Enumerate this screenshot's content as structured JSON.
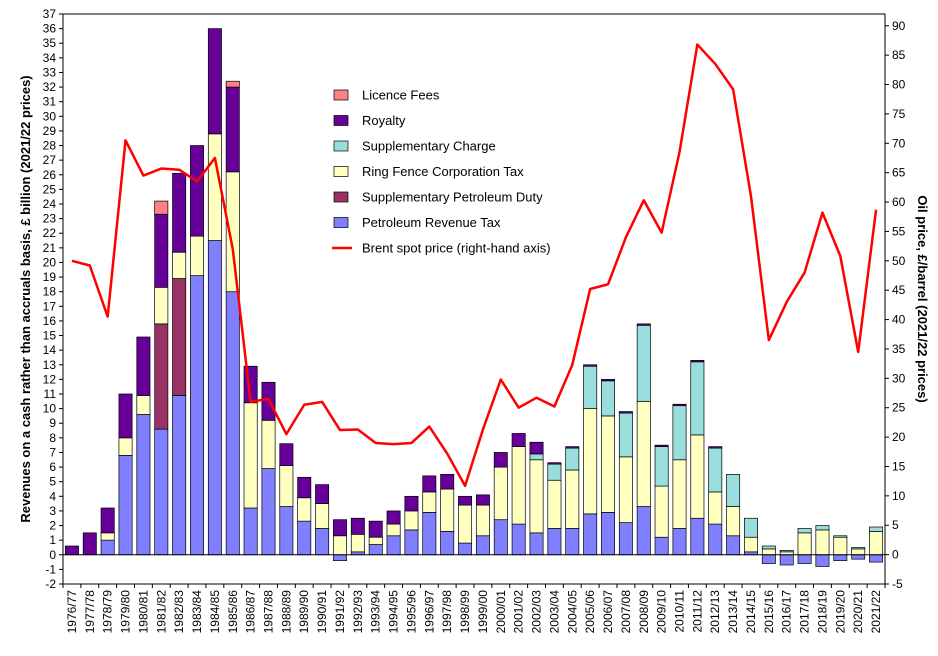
{
  "chart_data": {
    "type": "bar",
    "stacked": true,
    "title": "",
    "ylabel": "Revenues on a cash rather than accruals basis, £ billion (2021/22 prices)",
    "y2label": "Oil price, £/barrel (2021/22 prices)",
    "ylim": [
      -2,
      37
    ],
    "y2lim": [
      -5,
      92
    ],
    "grid": false,
    "legend_position": "top-center",
    "categories": [
      "1976/77",
      "1977/78",
      "1978/79",
      "1979/80",
      "1980/81",
      "1981/82",
      "1982/83",
      "1983/84",
      "1984/85",
      "1985/86",
      "1986/87",
      "1987/88",
      "1988/89",
      "1989/90",
      "1990/91",
      "1991/92",
      "1992/93",
      "1993/94",
      "1994/95",
      "1995/96",
      "1996/97",
      "1997/98",
      "1998/99",
      "1999/00",
      "2000/01",
      "2001/02",
      "2002/03",
      "2003/04",
      "2004/05",
      "2005/06",
      "2006/07",
      "2007/08",
      "2008/09",
      "2009/10",
      "2010/11",
      "2011/12",
      "2012/13",
      "2013/14",
      "2014/15",
      "2015/16",
      "2016/17",
      "2017/18",
      "2018/19",
      "2019/20",
      "2020/21",
      "2021/22"
    ],
    "series": [
      {
        "name": "Petroleum Revenue Tax",
        "color": "#8080ff",
        "values": [
          0,
          0,
          1.0,
          6.8,
          9.6,
          8.6,
          10.9,
          19.1,
          21.5,
          18.0,
          3.2,
          5.9,
          3.3,
          2.3,
          1.8,
          -0.4,
          0.2,
          0.7,
          1.3,
          1.7,
          2.9,
          1.6,
          0.8,
          1.3,
          2.4,
          2.1,
          1.5,
          1.8,
          1.8,
          2.8,
          2.9,
          2.2,
          3.3,
          1.2,
          1.8,
          2.5,
          2.1,
          1.3,
          0.2,
          -0.6,
          -0.7,
          -0.6,
          -0.8,
          -0.4,
          -0.3,
          -0.5
        ]
      },
      {
        "name": "Supplementary Petroleum Duty",
        "color": "#993366",
        "values": [
          0,
          0,
          0,
          0,
          0,
          7.2,
          8.0,
          0,
          0,
          0,
          0,
          0,
          0,
          0,
          0,
          0,
          0,
          0,
          0,
          0,
          0,
          0,
          0,
          0,
          0,
          0,
          0,
          0,
          0,
          0,
          0,
          0,
          0,
          0,
          0,
          0,
          0,
          0,
          0,
          0,
          0,
          0,
          0,
          0,
          0,
          0
        ]
      },
      {
        "name": "Ring Fence Corporation Tax",
        "color": "#ffffc0",
        "values": [
          0,
          0,
          0.5,
          1.2,
          1.3,
          2.5,
          1.8,
          2.7,
          7.3,
          8.2,
          7.2,
          3.3,
          2.8,
          1.6,
          1.7,
          1.3,
          1.2,
          0.5,
          0.8,
          1.3,
          1.4,
          2.9,
          2.6,
          2.1,
          3.6,
          5.3,
          5.0,
          3.3,
          4.0,
          7.2,
          6.6,
          4.5,
          7.2,
          3.5,
          4.7,
          5.7,
          2.2,
          2.0,
          1.0,
          0.4,
          0.2,
          1.5,
          1.7,
          1.2,
          0.4,
          1.6
        ]
      },
      {
        "name": "Supplementary Charge",
        "color": "#99dddd",
        "values": [
          0,
          0,
          0,
          0,
          0,
          0,
          0,
          0,
          0,
          0,
          0,
          0,
          0,
          0,
          0,
          0,
          0,
          0,
          0,
          0,
          0,
          0,
          0,
          0,
          0,
          0,
          0.4,
          1.1,
          1.5,
          2.9,
          2.4,
          3.0,
          5.2,
          2.7,
          3.7,
          5.0,
          3.0,
          2.2,
          1.3,
          0.2,
          0.1,
          0.3,
          0.3,
          0.1,
          0.1,
          0.3
        ]
      },
      {
        "name": "Royalty",
        "color": "#660099",
        "values": [
          0.6,
          1.5,
          1.7,
          3.0,
          4.0,
          5.0,
          5.4,
          6.2,
          7.2,
          5.8,
          2.5,
          2.6,
          1.5,
          1.4,
          1.3,
          1.1,
          1.1,
          1.1,
          0.9,
          1.0,
          1.1,
          1.0,
          0.6,
          0.7,
          1.0,
          0.9,
          0.8,
          0.1,
          0.1,
          0.1,
          0.1,
          0.1,
          0.1,
          0.1,
          0.1,
          0.1,
          0.1,
          0,
          0,
          0,
          0,
          0,
          0,
          0,
          0,
          0
        ]
      },
      {
        "name": "Licence Fees",
        "color": "#ff8080",
        "values": [
          0,
          0,
          0,
          0,
          0,
          0.9,
          0,
          0,
          0,
          0.4,
          0,
          0,
          0,
          0,
          0,
          0,
          0,
          0,
          0,
          0,
          0,
          0,
          0,
          0,
          0,
          0,
          0,
          0,
          0,
          0,
          0,
          0,
          0,
          0,
          0,
          0,
          0,
          0,
          0,
          0,
          0,
          0,
          0,
          0,
          0,
          0
        ]
      }
    ],
    "line": {
      "name": "Brent spot price (right-hand axis)",
      "color": "#ff0000",
      "axis": "right",
      "values": [
        50,
        49.2,
        40.5,
        70.5,
        64.5,
        65.7,
        65.5,
        63.5,
        67.5,
        52,
        26,
        26.5,
        20.5,
        25.5,
        26,
        21.2,
        21.3,
        19,
        18.8,
        19,
        21.8,
        17.2,
        11.7,
        21.3,
        29.8,
        25,
        26.7,
        25.2,
        32.3,
        45.2,
        46,
        54,
        60.3,
        54.8,
        68.5,
        86.8,
        83.5,
        79.2,
        61,
        36.5,
        43,
        48,
        58.2,
        50.8,
        34.5,
        58.7
      ]
    },
    "legend_order": [
      "Licence Fees",
      "Royalty",
      "Supplementary Charge",
      "Ring Fence Corporation Tax",
      "Supplementary Petroleum Duty",
      "Petroleum Revenue Tax",
      "Brent spot price (right-hand axis)"
    ]
  }
}
